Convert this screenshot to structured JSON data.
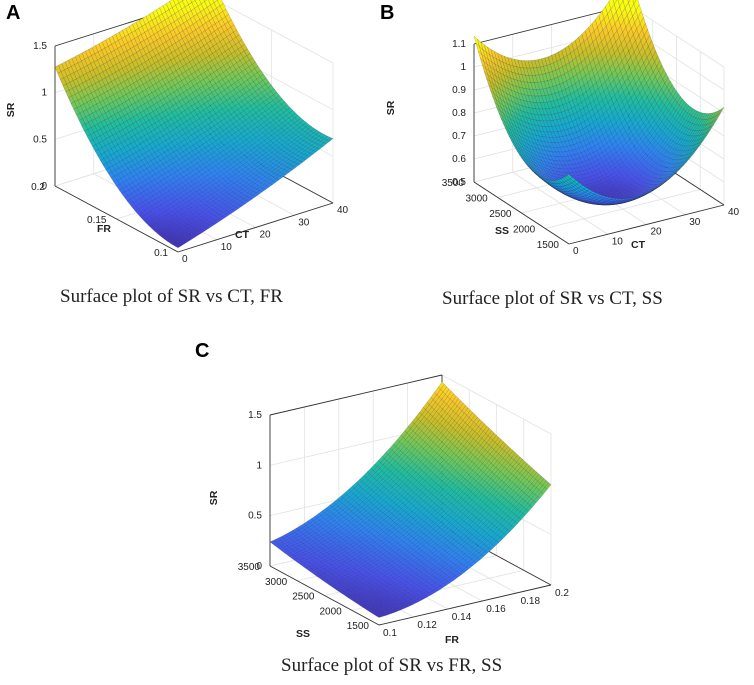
{
  "figure": {
    "panels": [
      {
        "letter": "A",
        "caption": "Surface plot of SR vs CT, FR"
      },
      {
        "letter": "B",
        "caption": "Surface plot of SR vs CT, SS"
      },
      {
        "letter": "C",
        "caption": "Surface plot of SR vs FR, SS"
      }
    ]
  },
  "chart_data": [
    {
      "type": "surface",
      "panel": "A",
      "title": "Surface plot of SR vs CT, FR",
      "xlabel": "CT",
      "ylabel": "FR",
      "zlabel": "SR",
      "xlim": [
        0,
        40
      ],
      "ylim": [
        0.1,
        0.2
      ],
      "zlim": [
        0,
        1.5
      ],
      "xticks": [
        "0",
        "10",
        "20",
        "30",
        "40"
      ],
      "yticks": [
        "0.1",
        "0.15",
        "0.2"
      ],
      "zticks": [
        "0",
        "0.5",
        "1",
        "1.5"
      ],
      "corner_values": {
        "ct0_fr0.1": 0.05,
        "ct40_fr0.1": 0.55,
        "ct0_fr0.2": 1.3,
        "ct40_fr0.2": 1.5
      },
      "colormap": "parula"
    },
    {
      "type": "surface",
      "panel": "B",
      "title": "Surface plot of SR vs CT, SS",
      "xlabel": "CT",
      "ylabel": "SS",
      "zlabel": "SR",
      "xlim": [
        0,
        40
      ],
      "ylim": [
        1500,
        3500
      ],
      "zlim": [
        0.5,
        1.1
      ],
      "xticks": [
        "0",
        "10",
        "20",
        "30",
        "40"
      ],
      "yticks": [
        "1500",
        "2000",
        "2500",
        "3000",
        "3500"
      ],
      "zticks": [
        "0.5",
        "0.6",
        "0.7",
        "0.8",
        "0.9",
        "1",
        "1.1"
      ],
      "minimum_value": 0.52,
      "corner_values": {
        "ct0_ss1500": 0.75,
        "ct40_ss1500": 0.7,
        "ct0_ss3500": 0.98,
        "ct40_ss3500": 0.95
      },
      "colormap": "parula"
    },
    {
      "type": "surface",
      "panel": "C",
      "title": "Surface plot of SR vs FR, SS",
      "xlabel": "FR",
      "ylabel": "SS",
      "zlabel": "SR",
      "xlim": [
        0.1,
        0.2
      ],
      "ylim": [
        1500,
        3500
      ],
      "zlim": [
        0,
        1.5
      ],
      "xticks": [
        "0.1",
        "0.12",
        "0.14",
        "0.16",
        "0.18",
        "0.2"
      ],
      "yticks": [
        "1500",
        "2000",
        "2500",
        "3000",
        "3500"
      ],
      "zticks": [
        "0",
        "0.5",
        "1",
        "1.5"
      ],
      "corner_values": {
        "fr0.1_ss1500": 0.05,
        "fr0.2_ss1500": 1.05,
        "fr0.1_ss3500": 0.3,
        "fr0.2_ss3500": 1.55
      },
      "colormap": "parula"
    }
  ]
}
